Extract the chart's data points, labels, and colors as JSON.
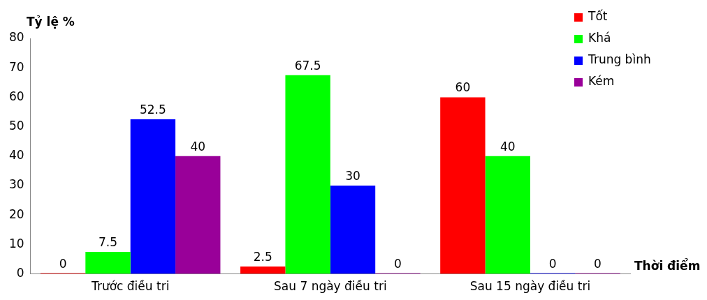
{
  "chart_data": {
    "type": "bar",
    "ylabel": "Tỷ lệ %",
    "xlabel": "Thời điểm",
    "categories": [
      "Trước điều tri",
      "Sau 7 ngày điều tri",
      "Sau 15 ngày điều tri"
    ],
    "series": [
      {
        "name": "Tốt",
        "color": "#ff0000",
        "values": [
          0,
          2.5,
          60
        ]
      },
      {
        "name": "Khá",
        "color": "#00ff00",
        "values": [
          7.5,
          67.5,
          40
        ]
      },
      {
        "name": "Trung bình",
        "color": "#0000ff",
        "values": [
          52.5,
          30,
          0
        ]
      },
      {
        "name": "Kém",
        "color": "#990099",
        "values": [
          40,
          0,
          0
        ]
      }
    ],
    "ylim": [
      0,
      80
    ],
    "yticks": [
      0,
      10,
      20,
      30,
      40,
      50,
      60,
      70,
      80
    ],
    "grid": false,
    "legend": "top right",
    "data_labels": true
  }
}
